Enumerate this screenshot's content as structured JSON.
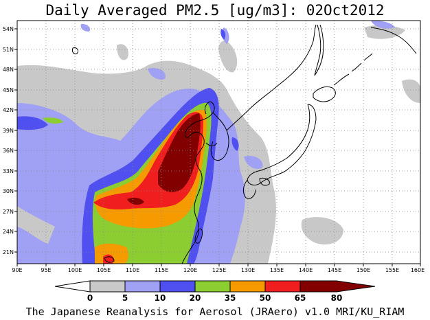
{
  "title": "Daily Averaged PM2.5 [ug/m3]: 02Oct2012",
  "footer": "The Japanese Reanalysis for Aerosol (JRAero) v1.0 MRI/KU_RIAM",
  "map": {
    "lon_range": [
      90,
      160
    ],
    "lat_range": [
      19.5,
      55.5
    ],
    "lon_ticks": [
      "90E",
      "95E",
      "100E",
      "105E",
      "110E",
      "115E",
      "120E",
      "125E",
      "130E",
      "135E",
      "140E",
      "145E",
      "150E",
      "155E",
      "160E"
    ],
    "lat_ticks": [
      "54N",
      "51N",
      "48N",
      "45N",
      "42N",
      "39N",
      "36N",
      "33N",
      "30N",
      "27N",
      "24N",
      "21N"
    ],
    "grid": "dotted"
  },
  "colorbar": {
    "labels": [
      "0",
      "5",
      "10",
      "20",
      "35",
      "50",
      "65",
      "80"
    ],
    "colors": [
      "#ffffff",
      "#c8c8c8",
      "#a0a0f5",
      "#5050f0",
      "#8ccd32",
      "#f59b00",
      "#f01e1e",
      "#820000"
    ]
  },
  "chart_data": {
    "type": "heatmap",
    "title": "Daily Averaged PM2.5 [ug/m3]: 02Oct2012",
    "x_ticks": [
      "90E",
      "95E",
      "100E",
      "105E",
      "110E",
      "115E",
      "120E",
      "125E",
      "130E",
      "135E",
      "140E",
      "145E",
      "150E",
      "155E",
      "160E"
    ],
    "y_ticks": [
      "54N",
      "51N",
      "48N",
      "45N",
      "42N",
      "39N",
      "36N",
      "33N",
      "30N",
      "27N",
      "24N",
      "21N"
    ],
    "color_levels": [
      0,
      5,
      10,
      20,
      35,
      50,
      65,
      80
    ]
  }
}
